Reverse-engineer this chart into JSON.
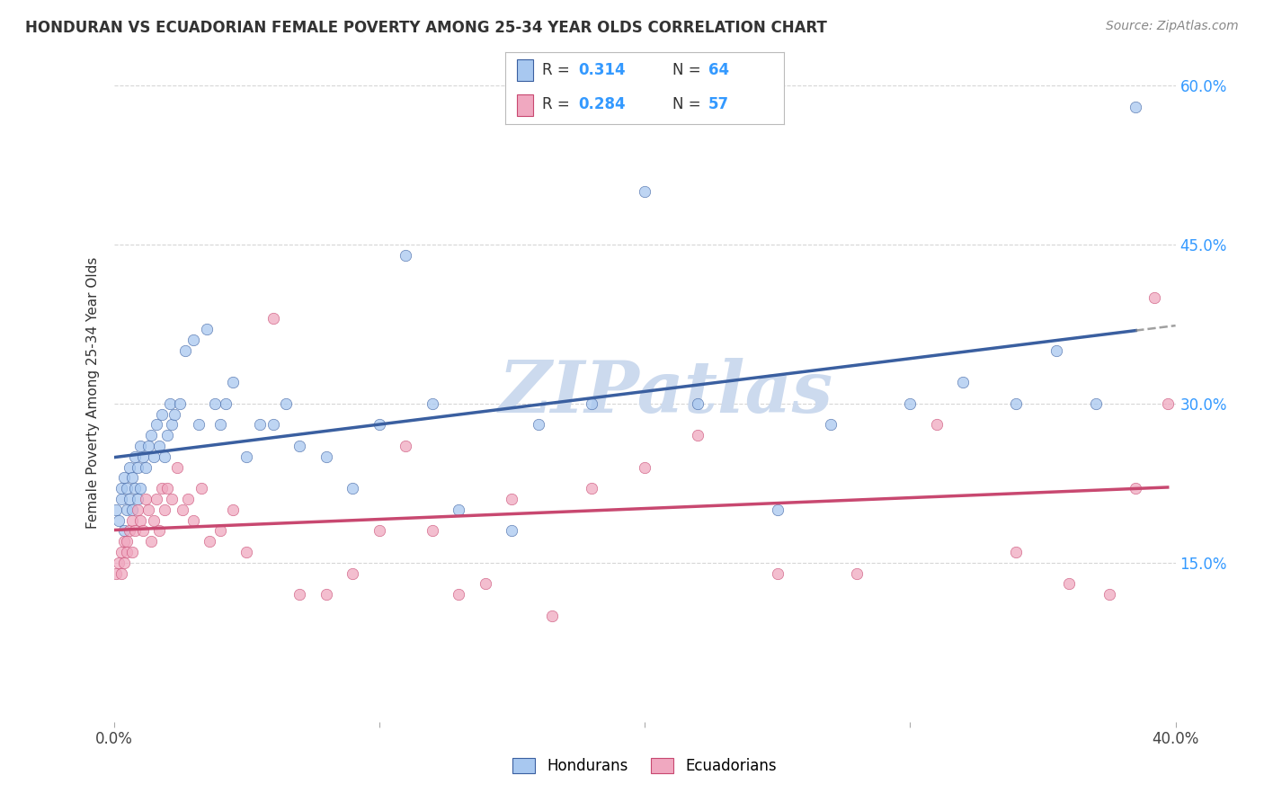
{
  "title": "HONDURAN VS ECUADORIAN FEMALE POVERTY AMONG 25-34 YEAR OLDS CORRELATION CHART",
  "source": "Source: ZipAtlas.com",
  "ylabel": "Female Poverty Among 25-34 Year Olds",
  "x_min": 0.0,
  "x_max": 0.4,
  "y_min": 0.0,
  "y_max": 0.62,
  "y_ticks_right": [
    0.15,
    0.3,
    0.45,
    0.6
  ],
  "y_tick_labels_right": [
    "15.0%",
    "30.0%",
    "45.0%",
    "60.0%"
  ],
  "honduran_color": "#a8c8f0",
  "ecuadorian_color": "#f0a8c0",
  "trend_honduran_color": "#3a5fa0",
  "trend_ecuadorian_color": "#c84870",
  "background_color": "#ffffff",
  "grid_color": "#cccccc",
  "legend_R_honduran": "0.314",
  "legend_N_honduran": "64",
  "legend_R_ecuadorian": "0.284",
  "legend_N_ecuadorian": "57",
  "honduran_x": [
    0.001,
    0.002,
    0.003,
    0.003,
    0.004,
    0.004,
    0.005,
    0.005,
    0.006,
    0.006,
    0.007,
    0.007,
    0.008,
    0.008,
    0.009,
    0.009,
    0.01,
    0.01,
    0.011,
    0.012,
    0.013,
    0.014,
    0.015,
    0.016,
    0.017,
    0.018,
    0.019,
    0.02,
    0.021,
    0.022,
    0.023,
    0.025,
    0.027,
    0.03,
    0.032,
    0.035,
    0.038,
    0.04,
    0.042,
    0.045,
    0.05,
    0.055,
    0.06,
    0.065,
    0.07,
    0.08,
    0.09,
    0.1,
    0.11,
    0.12,
    0.13,
    0.15,
    0.16,
    0.18,
    0.2,
    0.22,
    0.25,
    0.27,
    0.3,
    0.32,
    0.34,
    0.355,
    0.37,
    0.385
  ],
  "honduran_y": [
    0.2,
    0.19,
    0.21,
    0.22,
    0.18,
    0.23,
    0.2,
    0.22,
    0.21,
    0.24,
    0.2,
    0.23,
    0.22,
    0.25,
    0.21,
    0.24,
    0.22,
    0.26,
    0.25,
    0.24,
    0.26,
    0.27,
    0.25,
    0.28,
    0.26,
    0.29,
    0.25,
    0.27,
    0.3,
    0.28,
    0.29,
    0.3,
    0.35,
    0.36,
    0.28,
    0.37,
    0.3,
    0.28,
    0.3,
    0.32,
    0.25,
    0.28,
    0.28,
    0.3,
    0.26,
    0.25,
    0.22,
    0.28,
    0.44,
    0.3,
    0.2,
    0.18,
    0.28,
    0.3,
    0.5,
    0.3,
    0.2,
    0.28,
    0.3,
    0.32,
    0.3,
    0.35,
    0.3,
    0.58
  ],
  "ecuadorian_x": [
    0.001,
    0.002,
    0.003,
    0.003,
    0.004,
    0.004,
    0.005,
    0.005,
    0.006,
    0.007,
    0.007,
    0.008,
    0.009,
    0.01,
    0.011,
    0.012,
    0.013,
    0.014,
    0.015,
    0.016,
    0.017,
    0.018,
    0.019,
    0.02,
    0.022,
    0.024,
    0.026,
    0.028,
    0.03,
    0.033,
    0.036,
    0.04,
    0.045,
    0.05,
    0.06,
    0.07,
    0.08,
    0.09,
    0.1,
    0.11,
    0.12,
    0.13,
    0.14,
    0.15,
    0.165,
    0.18,
    0.2,
    0.22,
    0.25,
    0.28,
    0.31,
    0.34,
    0.36,
    0.375,
    0.385,
    0.392,
    0.397
  ],
  "ecuadorian_y": [
    0.14,
    0.15,
    0.16,
    0.14,
    0.17,
    0.15,
    0.16,
    0.17,
    0.18,
    0.16,
    0.19,
    0.18,
    0.2,
    0.19,
    0.18,
    0.21,
    0.2,
    0.17,
    0.19,
    0.21,
    0.18,
    0.22,
    0.2,
    0.22,
    0.21,
    0.24,
    0.2,
    0.21,
    0.19,
    0.22,
    0.17,
    0.18,
    0.2,
    0.16,
    0.38,
    0.12,
    0.12,
    0.14,
    0.18,
    0.26,
    0.18,
    0.12,
    0.13,
    0.21,
    0.1,
    0.22,
    0.24,
    0.27,
    0.14,
    0.14,
    0.28,
    0.16,
    0.13,
    0.12,
    0.22,
    0.4,
    0.3
  ],
  "watermark": "ZIPatlas",
  "watermark_color": "#ccdaee"
}
